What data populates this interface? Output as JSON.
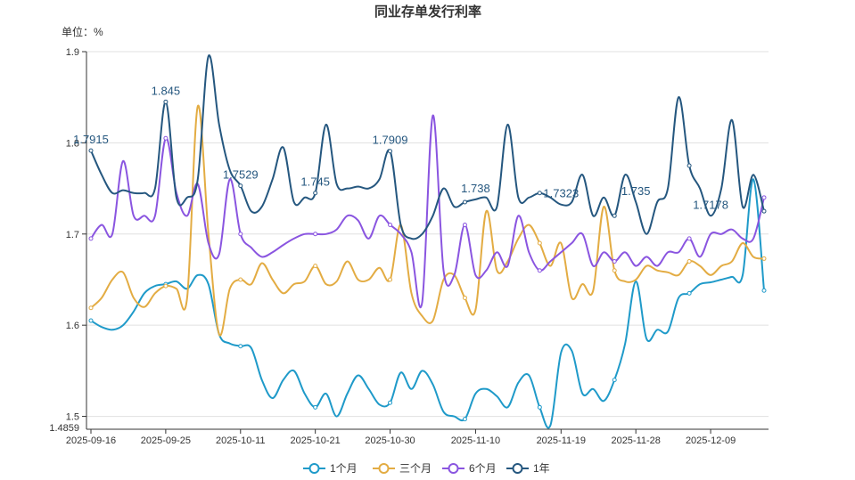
{
  "chart_data": {
    "type": "line",
    "title": "同业存单发行利率",
    "unit_label": "单位：%",
    "ylim": [
      1.4859,
      1.9
    ],
    "y_ticks": [
      1.5,
      1.6,
      1.7,
      1.8,
      1.9
    ],
    "y_min_label": "1.4859",
    "x_ticks": [
      "2025-09-16",
      "2025-09-25",
      "2025-10-11",
      "2025-10-21",
      "2025-10-30",
      "2025-11-10",
      "2025-11-19",
      "2025-11-28",
      "2025-12-09"
    ],
    "grid": true,
    "legend_position": "bottom-center",
    "series": [
      {
        "name": "1个月",
        "color": "#1f9ac9",
        "values": [
          1.605,
          1.598,
          1.595,
          1.6,
          1.615,
          1.635,
          1.643,
          1.645,
          1.648,
          1.64,
          1.655,
          1.645,
          1.59,
          1.58,
          1.577,
          1.575,
          1.54,
          1.52,
          1.54,
          1.55,
          1.525,
          1.51,
          1.525,
          1.5,
          1.525,
          1.545,
          1.53,
          1.513,
          1.515,
          1.548,
          1.53,
          1.55,
          1.535,
          1.505,
          1.5,
          1.497,
          1.525,
          1.53,
          1.522,
          1.51,
          1.537,
          1.545,
          1.51,
          1.49,
          1.57,
          1.572,
          1.525,
          1.53,
          1.517,
          1.54,
          1.58,
          1.648,
          1.585,
          1.595,
          1.593,
          1.63,
          1.635,
          1.645,
          1.647,
          1.65,
          1.653,
          1.655,
          1.76,
          1.638
        ]
      },
      {
        "name": "三个月",
        "color": "#e3ac43",
        "values": [
          1.619,
          1.63,
          1.65,
          1.658,
          1.63,
          1.62,
          1.635,
          1.643,
          1.64,
          1.63,
          1.84,
          1.7,
          1.59,
          1.64,
          1.65,
          1.645,
          1.668,
          1.65,
          1.635,
          1.645,
          1.648,
          1.665,
          1.645,
          1.648,
          1.67,
          1.65,
          1.65,
          1.663,
          1.65,
          1.71,
          1.635,
          1.61,
          1.605,
          1.65,
          1.655,
          1.63,
          1.617,
          1.725,
          1.66,
          1.67,
          1.695,
          1.71,
          1.69,
          1.665,
          1.69,
          1.63,
          1.645,
          1.638,
          1.73,
          1.66,
          1.648,
          1.65,
          1.665,
          1.66,
          1.658,
          1.655,
          1.67,
          1.665,
          1.655,
          1.665,
          1.67,
          1.69,
          1.675,
          1.673
        ]
      },
      {
        "name": "6个月",
        "color": "#8a55e0",
        "values": [
          1.695,
          1.71,
          1.7,
          1.78,
          1.72,
          1.72,
          1.72,
          1.805,
          1.745,
          1.72,
          1.755,
          1.69,
          1.678,
          1.76,
          1.7,
          1.685,
          1.675,
          1.68,
          1.688,
          1.695,
          1.7,
          1.7,
          1.7,
          1.705,
          1.72,
          1.715,
          1.695,
          1.72,
          1.71,
          1.7,
          1.68,
          1.625,
          1.83,
          1.66,
          1.655,
          1.71,
          1.655,
          1.66,
          1.68,
          1.665,
          1.72,
          1.68,
          1.66,
          1.67,
          1.68,
          1.69,
          1.7,
          1.665,
          1.68,
          1.67,
          1.68,
          1.665,
          1.675,
          1.665,
          1.68,
          1.68,
          1.695,
          1.675,
          1.7,
          1.7,
          1.705,
          1.695,
          1.695,
          1.74
        ]
      },
      {
        "name": "1年",
        "color": "#25577f",
        "values": [
          1.7915,
          1.765,
          1.745,
          1.748,
          1.745,
          1.745,
          1.75,
          1.845,
          1.74,
          1.74,
          1.76,
          1.895,
          1.82,
          1.77,
          1.7529,
          1.725,
          1.73,
          1.76,
          1.795,
          1.735,
          1.74,
          1.745,
          1.82,
          1.755,
          1.75,
          1.752,
          1.75,
          1.76,
          1.7909,
          1.71,
          1.695,
          1.7,
          1.72,
          1.75,
          1.73,
          1.735,
          1.738,
          1.74,
          1.73,
          1.82,
          1.74,
          1.74,
          1.745,
          1.74,
          1.7323,
          1.735,
          1.765,
          1.72,
          1.74,
          1.72,
          1.765,
          1.735,
          1.7,
          1.735,
          1.75,
          1.85,
          1.775,
          1.75,
          1.72,
          1.75,
          1.825,
          1.73,
          1.765,
          1.725
        ]
      }
    ],
    "annotations": [
      {
        "series": "1年",
        "index": 0,
        "label": "1.7915"
      },
      {
        "series": "1年",
        "index": 7,
        "label": "1.845"
      },
      {
        "series": "1年",
        "index": 14,
        "label": "1.7529"
      },
      {
        "series": "1年",
        "index": 21,
        "label": "1.745"
      },
      {
        "series": "1年",
        "index": 28,
        "label": "1.7909"
      },
      {
        "series": "1年",
        "index": 36,
        "label": "1.738"
      },
      {
        "series": "1年",
        "index": 44,
        "label": "1.7323"
      },
      {
        "series": "1年",
        "index": 51,
        "label": "1.735"
      },
      {
        "series": "1年",
        "index": 58,
        "label": "1.7178"
      }
    ],
    "marker_step": 7
  }
}
